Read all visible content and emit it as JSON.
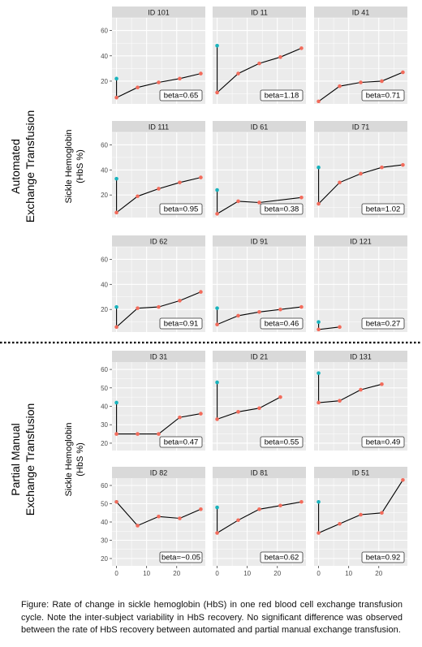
{
  "chart_data": {
    "type": "line",
    "ylabel": "Sickle Hemoglobin\n(HbS %)",
    "x_ticks": [
      0,
      10,
      20
    ],
    "groups": [
      {
        "label": "Automated\nExchange Transfusion",
        "y_ticks": [
          20,
          40,
          60
        ],
        "ylim": [
          2,
          70
        ],
        "panels": [
          {
            "id": "ID 101",
            "beta": "beta=0.65",
            "baseline": {
              "x": 0,
              "y": 22
            },
            "points": [
              {
                "x": 0,
                "y": 7
              },
              {
                "x": 7,
                "y": 15
              },
              {
                "x": 14,
                "y": 19
              },
              {
                "x": 21,
                "y": 22
              },
              {
                "x": 28,
                "y": 26
              }
            ]
          },
          {
            "id": "ID 11",
            "beta": "beta=1.18",
            "baseline": {
              "x": 0,
              "y": 48
            },
            "points": [
              {
                "x": 0,
                "y": 11
              },
              {
                "x": 7,
                "y": 26
              },
              {
                "x": 14,
                "y": 34
              },
              {
                "x": 21,
                "y": 39
              },
              {
                "x": 28,
                "y": 46
              }
            ]
          },
          {
            "id": "ID 41",
            "beta": "beta=0.71",
            "baseline": null,
            "points": [
              {
                "x": 0,
                "y": 4
              },
              {
                "x": 7,
                "y": 16
              },
              {
                "x": 14,
                "y": 19
              },
              {
                "x": 21,
                "y": 20
              },
              {
                "x": 28,
                "y": 27
              }
            ]
          },
          {
            "id": "ID 111",
            "beta": "beta=0.95",
            "baseline": {
              "x": 0,
              "y": 33
            },
            "points": [
              {
                "x": 0,
                "y": 6
              },
              {
                "x": 7,
                "y": 19
              },
              {
                "x": 14,
                "y": 25
              },
              {
                "x": 21,
                "y": 30
              },
              {
                "x": 28,
                "y": 34
              }
            ]
          },
          {
            "id": "ID 61",
            "beta": "beta=0.38",
            "baseline": {
              "x": 0,
              "y": 24
            },
            "points": [
              {
                "x": 0,
                "y": 5
              },
              {
                "x": 7,
                "y": 15
              },
              {
                "x": 14,
                "y": 14
              },
              {
                "x": 28,
                "y": 18
              }
            ]
          },
          {
            "id": "ID 71",
            "beta": "beta=1.02",
            "baseline": {
              "x": 0,
              "y": 42
            },
            "points": [
              {
                "x": 0,
                "y": 13
              },
              {
                "x": 7,
                "y": 30
              },
              {
                "x": 14,
                "y": 37
              },
              {
                "x": 21,
                "y": 42
              },
              {
                "x": 28,
                "y": 44
              }
            ]
          },
          {
            "id": "ID 62",
            "beta": "beta=0.91",
            "baseline": {
              "x": 0,
              "y": 22
            },
            "points": [
              {
                "x": 0,
                "y": 6
              },
              {
                "x": 7,
                "y": 21
              },
              {
                "x": 14,
                "y": 22
              },
              {
                "x": 21,
                "y": 27
              },
              {
                "x": 28,
                "y": 34
              }
            ]
          },
          {
            "id": "ID 91",
            "beta": "beta=0.46",
            "baseline": {
              "x": 0,
              "y": 21
            },
            "points": [
              {
                "x": 0,
                "y": 8
              },
              {
                "x": 7,
                "y": 15
              },
              {
                "x": 14,
                "y": 18
              },
              {
                "x": 21,
                "y": 20
              },
              {
                "x": 28,
                "y": 22
              }
            ]
          },
          {
            "id": "ID 121",
            "beta": "beta=0.27",
            "baseline": {
              "x": 0,
              "y": 10
            },
            "points": [
              {
                "x": 0,
                "y": 4
              },
              {
                "x": 7,
                "y": 6
              }
            ]
          }
        ]
      },
      {
        "label": "Partial Manual\nExchange Transfusion",
        "y_ticks": [
          20,
          30,
          40,
          50,
          60
        ],
        "ylim": [
          16,
          64
        ],
        "panels": [
          {
            "id": "ID 31",
            "beta": "beta=0.47",
            "baseline": {
              "x": 0,
              "y": 42
            },
            "points": [
              {
                "x": 0,
                "y": 25
              },
              {
                "x": 7,
                "y": 25
              },
              {
                "x": 14,
                "y": 25
              },
              {
                "x": 21,
                "y": 34
              },
              {
                "x": 28,
                "y": 36
              }
            ]
          },
          {
            "id": "ID 21",
            "beta": "beta=0.55",
            "baseline": {
              "x": 0,
              "y": 53
            },
            "points": [
              {
                "x": 0,
                "y": 33
              },
              {
                "x": 7,
                "y": 37
              },
              {
                "x": 14,
                "y": 39
              },
              {
                "x": 21,
                "y": 45
              }
            ]
          },
          {
            "id": "ID 131",
            "beta": "beta=0.49",
            "baseline": {
              "x": 0,
              "y": 58
            },
            "points": [
              {
                "x": 0,
                "y": 42
              },
              {
                "x": 7,
                "y": 43
              },
              {
                "x": 14,
                "y": 49
              },
              {
                "x": 21,
                "y": 52
              }
            ]
          },
          {
            "id": "ID 82",
            "beta": "beta=−0.05",
            "baseline": {
              "x": 0,
              "y": 51
            },
            "points": [
              {
                "x": 0,
                "y": 51
              },
              {
                "x": 7,
                "y": 38
              },
              {
                "x": 14,
                "y": 43
              },
              {
                "x": 21,
                "y": 42
              },
              {
                "x": 28,
                "y": 47
              }
            ]
          },
          {
            "id": "ID 81",
            "beta": "beta=0.62",
            "baseline": {
              "x": 0,
              "y": 48
            },
            "points": [
              {
                "x": 0,
                "y": 34
              },
              {
                "x": 7,
                "y": 41
              },
              {
                "x": 14,
                "y": 47
              },
              {
                "x": 21,
                "y": 49
              },
              {
                "x": 28,
                "y": 51
              }
            ]
          },
          {
            "id": "ID 51",
            "beta": "beta=0.92",
            "baseline": {
              "x": 0,
              "y": 51
            },
            "points": [
              {
                "x": 0,
                "y": 34
              },
              {
                "x": 7,
                "y": 39
              },
              {
                "x": 14,
                "y": 44
              },
              {
                "x": 21,
                "y": 45
              },
              {
                "x": 28,
                "y": 63
              }
            ]
          }
        ]
      }
    ],
    "colors": {
      "baseline": "#19b3bd",
      "post": "#f26b5b",
      "line": "#000000",
      "panel_bg": "#ebebeb",
      "strip_bg": "#d9d9d9",
      "grid": "#ffffff"
    }
  },
  "caption": "Figure: Rate of change in sickle hemoglobin (HbS) in one red blood cell exchange transfusion cycle. Note the inter-subject variability in HbS recovery. No significant difference was observed between the rate of HbS recovery between automated and partial manual exchange transfusion."
}
